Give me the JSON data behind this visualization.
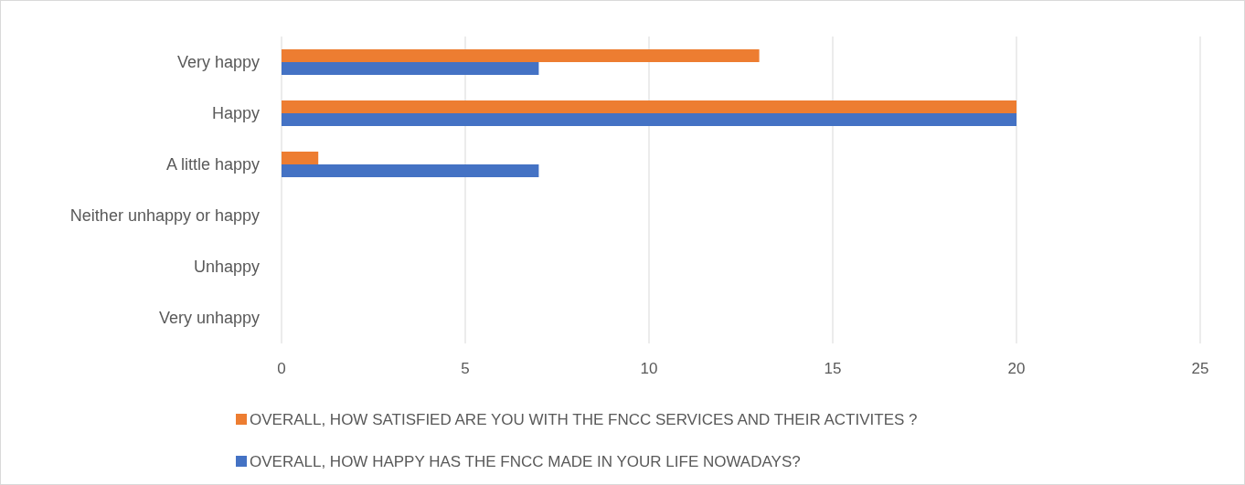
{
  "chart_data": {
    "type": "bar",
    "orientation": "horizontal",
    "categories": [
      "Very happy",
      "Happy",
      "A little happy",
      "Neither unhappy or happy",
      "Unhappy",
      "Very unhappy"
    ],
    "series": [
      {
        "name": "OVERALL, HOW SATISFIED ARE YOU WITH THE FNCC SERVICES AND THEIR ACTIVITES ?",
        "color": "#ed7d31",
        "values": [
          13,
          20,
          1,
          0,
          0,
          0
        ]
      },
      {
        "name": "OVERALL, HOW HAPPY HAS THE FNCC MADE IN YOUR LIFE NOWADAYS?",
        "color": "#4472c4",
        "values": [
          7,
          20,
          7,
          0,
          0,
          0
        ]
      }
    ],
    "xlim": [
      0,
      25
    ],
    "xticks": [
      0,
      5,
      10,
      15,
      20,
      25
    ],
    "grid": "x",
    "legend": "bottom"
  }
}
